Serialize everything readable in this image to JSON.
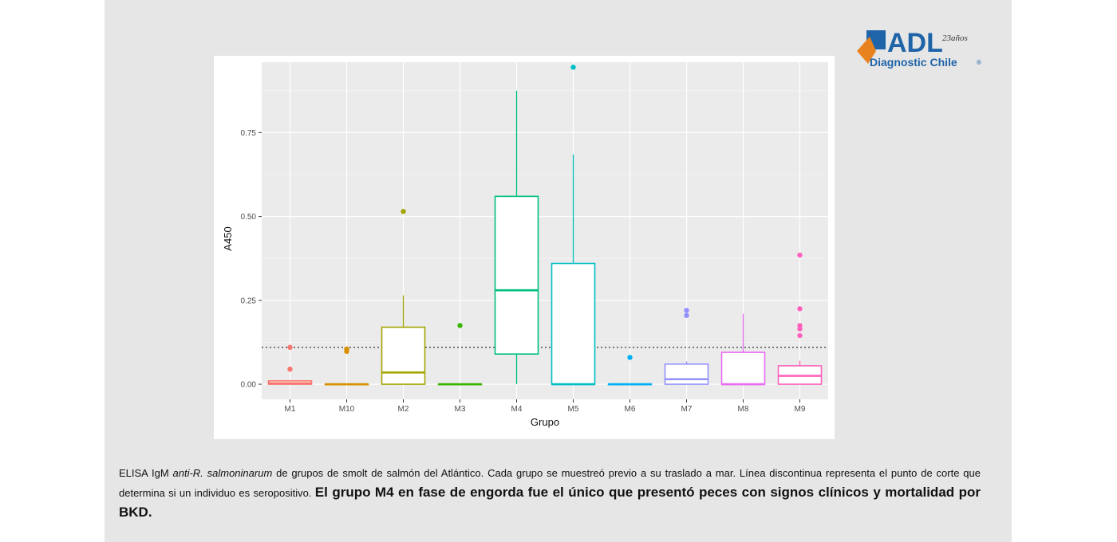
{
  "chart_data": {
    "type": "boxplot",
    "xlabel": "Grupo",
    "ylabel": "A450",
    "ylim": [
      -0.045,
      0.96
    ],
    "yticks": [
      0.0,
      0.25,
      0.5,
      0.75
    ],
    "ytick_labels": [
      "0.00",
      "0.25",
      "0.50",
      "0.75"
    ],
    "cutoff_line": 0.11,
    "grid": true,
    "legend": "none",
    "series": [
      {
        "name": "M1",
        "color": "#F8766D",
        "min": 0.0,
        "q1": 0.0,
        "median": 0.003,
        "q3": 0.01,
        "max": 0.012,
        "outliers": [
          0.11,
          0.045
        ]
      },
      {
        "name": "M10",
        "color": "#D89000",
        "min": 0.0,
        "q1": 0.0,
        "median": 0.0,
        "q3": 0.0,
        "max": 0.0,
        "outliers": [
          0.105,
          0.098
        ]
      },
      {
        "name": "M2",
        "color": "#A3A500",
        "min": 0.0,
        "q1": 0.0,
        "median": 0.035,
        "q3": 0.17,
        "max": 0.265,
        "outliers": [
          0.515
        ]
      },
      {
        "name": "M3",
        "color": "#39B600",
        "min": 0.0,
        "q1": 0.0,
        "median": 0.0,
        "q3": 0.0,
        "max": 0.0,
        "outliers": [
          0.175
        ]
      },
      {
        "name": "M4",
        "color": "#00BF7D",
        "min": 0.0,
        "q1": 0.09,
        "median": 0.28,
        "q3": 0.56,
        "max": 0.875,
        "outliers": []
      },
      {
        "name": "M5",
        "color": "#00BFC4",
        "min": 0.0,
        "q1": 0.0,
        "median": 0.0,
        "q3": 0.36,
        "max": 0.685,
        "outliers": [
          0.945
        ]
      },
      {
        "name": "M6",
        "color": "#00B0F6",
        "min": 0.0,
        "q1": 0.0,
        "median": 0.0,
        "q3": 0.0,
        "max": 0.0,
        "outliers": [
          0.08
        ]
      },
      {
        "name": "M7",
        "color": "#9590FF",
        "min": 0.0,
        "q1": 0.0,
        "median": 0.015,
        "q3": 0.06,
        "max": 0.068,
        "outliers": [
          0.22,
          0.205
        ]
      },
      {
        "name": "M8",
        "color": "#E76BF3",
        "min": 0.0,
        "q1": 0.0,
        "median": 0.0,
        "q3": 0.095,
        "max": 0.21,
        "outliers": []
      },
      {
        "name": "M9",
        "color": "#FF62BC",
        "min": 0.0,
        "q1": 0.0,
        "median": 0.025,
        "q3": 0.055,
        "max": 0.07,
        "outliers": [
          0.385,
          0.225,
          0.175,
          0.165,
          0.145
        ]
      }
    ]
  },
  "logo": {
    "text": "ADL",
    "superscript": "23años",
    "subtitle": "Diagnostic Chile",
    "registered": "®",
    "colors": {
      "blue": "#1f64a8",
      "orange": "#e8821e"
    }
  },
  "caption": {
    "part1": "ELISA IgM ",
    "italic": "anti-R. salmoninarum",
    "part2": " de grupos de smolt de salmón del Atlántico. Cada grupo se muestreó previo a su traslado a mar. Línea discontinua representa el punto de corte que determina si un individuo es seropositivo. ",
    "bold": "El grupo M4 en fase de engorda fue el único que presentó peces con signos clínicos y mortalidad por BKD."
  }
}
